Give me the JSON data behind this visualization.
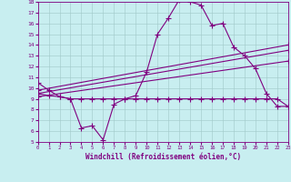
{
  "xlabel": "Windchill (Refroidissement éolien,°C)",
  "background_color": "#c8eef0",
  "line_color": "#800080",
  "grid_color": "#a0c8c8",
  "xmin": 0,
  "xmax": 23,
  "ymin": 5,
  "ymax": 18,
  "series1_x": [
    0,
    1,
    2,
    3,
    4,
    5,
    6,
    7,
    8,
    9,
    10,
    11,
    12,
    13,
    14,
    15,
    16,
    17,
    18,
    19,
    20,
    21,
    22,
    23
  ],
  "series1_y": [
    10.5,
    9.8,
    9.2,
    9.0,
    6.3,
    6.5,
    5.2,
    8.5,
    9.0,
    9.3,
    11.5,
    15.0,
    16.5,
    18.2,
    18.0,
    17.7,
    15.8,
    16.0,
    13.8,
    13.0,
    11.8,
    9.5,
    8.3,
    8.3
  ],
  "series2_x": [
    0,
    1,
    2,
    3,
    4,
    5,
    6,
    7,
    8,
    9,
    10,
    11,
    12,
    13,
    14,
    15,
    16,
    17,
    18,
    19,
    20,
    21,
    22,
    23
  ],
  "series2_y": [
    9.5,
    9.3,
    9.2,
    9.0,
    9.0,
    9.0,
    9.0,
    9.0,
    9.0,
    9.0,
    9.0,
    9.0,
    9.0,
    9.0,
    9.0,
    9.0,
    9.0,
    9.0,
    9.0,
    9.0,
    9.0,
    9.0,
    9.0,
    8.3
  ],
  "series3_x": [
    0,
    23
  ],
  "series3_y": [
    9.8,
    14.0
  ],
  "series4_x": [
    0,
    23
  ],
  "series4_y": [
    9.5,
    13.5
  ],
  "series5_x": [
    0,
    23
  ],
  "series5_y": [
    9.2,
    12.5
  ]
}
